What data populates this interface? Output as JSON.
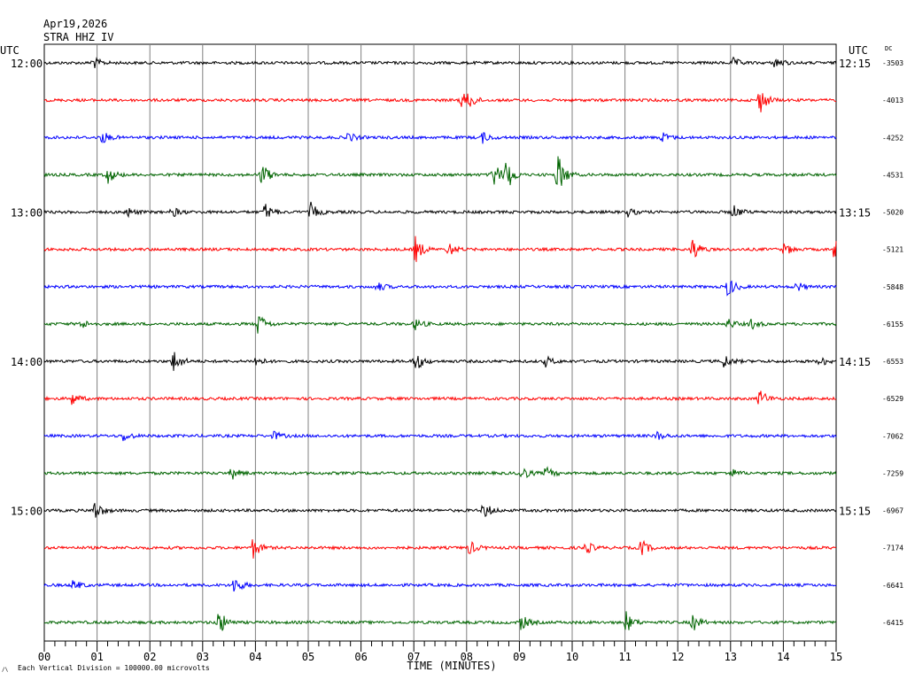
{
  "header": {
    "date": "Apr19,2026",
    "station": "STRA HHZ IV"
  },
  "labels": {
    "left_utc": "UTC",
    "right_utc": "UTC",
    "dc": "DC",
    "xlabel": "TIME (MINUTES)",
    "footnote": "Each Vertical Division = 100000.00 microvolts"
  },
  "colors": {
    "trace_cycle": [
      "#000000",
      "#ff0000",
      "#0000ff",
      "#006400"
    ],
    "grid": "#808080"
  },
  "chart_data": {
    "type": "line",
    "title": "",
    "xlabel": "TIME (MINUTES)",
    "ylabel": "",
    "xlim": [
      0,
      15
    ],
    "x_ticks": [
      "00",
      "01",
      "02",
      "03",
      "04",
      "05",
      "06",
      "07",
      "08",
      "09",
      "10",
      "11",
      "12",
      "13",
      "14",
      "15"
    ],
    "grid": true,
    "series": [
      {
        "left_label": "12:00",
        "right_label": "12:15",
        "dc": "-3503",
        "color": "#000000",
        "events": [
          {
            "t": 0.92,
            "a": 7
          },
          {
            "t": 13.05,
            "a": 5
          },
          {
            "t": 13.85,
            "a": 7
          }
        ]
      },
      {
        "left_label": "",
        "right_label": "",
        "dc": "-4013",
        "color": "#ff0000",
        "events": [
          {
            "t": 7.9,
            "a": 9
          },
          {
            "t": 8.05,
            "a": 8
          },
          {
            "t": 13.55,
            "a": 16
          }
        ]
      },
      {
        "left_label": "",
        "right_label": "",
        "dc": "-4252",
        "color": "#0000ff",
        "events": [
          {
            "t": 1.1,
            "a": 7
          },
          {
            "t": 5.75,
            "a": 6
          },
          {
            "t": 8.3,
            "a": 6
          },
          {
            "t": 11.7,
            "a": 6
          }
        ]
      },
      {
        "left_label": "",
        "right_label": "",
        "dc": "-4531",
        "color": "#006400",
        "events": [
          {
            "t": 1.2,
            "a": 10
          },
          {
            "t": 4.12,
            "a": 14
          },
          {
            "t": 8.5,
            "a": 16
          },
          {
            "t": 8.75,
            "a": 20
          },
          {
            "t": 9.72,
            "a": 26
          }
        ]
      },
      {
        "left_label": "13:00",
        "right_label": "13:15",
        "dc": "-5020",
        "color": "#000000",
        "events": [
          {
            "t": 1.55,
            "a": 6
          },
          {
            "t": 2.42,
            "a": 6
          },
          {
            "t": 4.18,
            "a": 10
          },
          {
            "t": 5.05,
            "a": 10
          },
          {
            "t": 11.05,
            "a": 5
          },
          {
            "t": 13.05,
            "a": 8
          }
        ]
      },
      {
        "left_label": "",
        "right_label": "",
        "dc": "-5121",
        "color": "#ff0000",
        "events": [
          {
            "t": 7.02,
            "a": 16
          },
          {
            "t": 7.65,
            "a": 8
          },
          {
            "t": 12.28,
            "a": 14
          },
          {
            "t": 14.02,
            "a": 7
          },
          {
            "t": 14.97,
            "a": 14
          }
        ]
      },
      {
        "left_label": "",
        "right_label": "",
        "dc": "-5848",
        "color": "#0000ff",
        "events": [
          {
            "t": 6.3,
            "a": 6
          },
          {
            "t": 12.95,
            "a": 12
          },
          {
            "t": 14.25,
            "a": 6
          }
        ]
      },
      {
        "left_label": "",
        "right_label": "",
        "dc": "-6155",
        "color": "#006400",
        "events": [
          {
            "t": 0.7,
            "a": 5
          },
          {
            "t": 4.05,
            "a": 13
          },
          {
            "t": 7.02,
            "a": 7
          },
          {
            "t": 12.95,
            "a": 6
          },
          {
            "t": 13.38,
            "a": 6
          }
        ]
      },
      {
        "left_label": "14:00",
        "right_label": "14:15",
        "dc": "-6553",
        "color": "#000000",
        "events": [
          {
            "t": 2.45,
            "a": 14
          },
          {
            "t": 4.0,
            "a": 6
          },
          {
            "t": 7.02,
            "a": 13
          },
          {
            "t": 9.5,
            "a": 6
          },
          {
            "t": 12.88,
            "a": 8
          },
          {
            "t": 14.7,
            "a": 6
          }
        ]
      },
      {
        "left_label": "",
        "right_label": "",
        "dc": "-6529",
        "color": "#ff0000",
        "events": [
          {
            "t": 0.52,
            "a": 7
          },
          {
            "t": 13.55,
            "a": 11
          }
        ]
      },
      {
        "left_label": "",
        "right_label": "",
        "dc": "-7062",
        "color": "#0000ff",
        "events": [
          {
            "t": 1.5,
            "a": 6
          },
          {
            "t": 4.35,
            "a": 5
          },
          {
            "t": 11.6,
            "a": 5
          }
        ]
      },
      {
        "left_label": "",
        "right_label": "",
        "dc": "-7259",
        "color": "#006400",
        "events": [
          {
            "t": 3.55,
            "a": 7
          },
          {
            "t": 9.02,
            "a": 10
          },
          {
            "t": 9.5,
            "a": 7
          },
          {
            "t": 13.0,
            "a": 5
          }
        ]
      },
      {
        "left_label": "15:00",
        "right_label": "15:15",
        "dc": "-6967",
        "color": "#000000",
        "events": [
          {
            "t": 0.95,
            "a": 12
          },
          {
            "t": 8.32,
            "a": 10
          }
        ]
      },
      {
        "left_label": "",
        "right_label": "",
        "dc": "-7174",
        "color": "#ff0000",
        "events": [
          {
            "t": 3.95,
            "a": 12
          },
          {
            "t": 8.05,
            "a": 8
          },
          {
            "t": 10.25,
            "a": 8
          },
          {
            "t": 11.3,
            "a": 10
          }
        ]
      },
      {
        "left_label": "",
        "right_label": "",
        "dc": "-6641",
        "color": "#0000ff",
        "events": [
          {
            "t": 0.55,
            "a": 6
          },
          {
            "t": 3.6,
            "a": 11
          }
        ]
      },
      {
        "left_label": "",
        "right_label": "",
        "dc": "-6415",
        "color": "#006400",
        "events": [
          {
            "t": 3.3,
            "a": 16
          },
          {
            "t": 9.02,
            "a": 10
          },
          {
            "t": 11.02,
            "a": 12
          },
          {
            "t": 12.28,
            "a": 10
          }
        ]
      }
    ]
  }
}
